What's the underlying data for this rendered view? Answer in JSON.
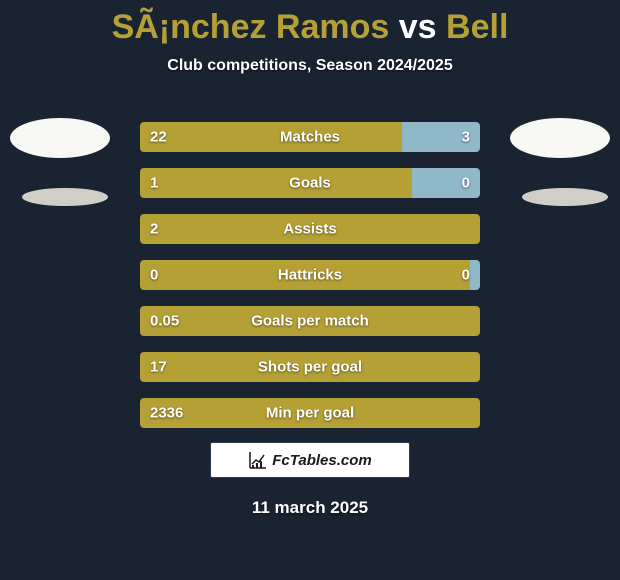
{
  "title": {
    "player1": "SÃ¡nchez Ramos",
    "vs": "vs",
    "player2": "Bell",
    "accent_color": "#b5a035",
    "text_color": "#ffffff",
    "fontsize": 34
  },
  "subtitle": "Club competitions, Season 2024/2025",
  "background_color": "#1a2332",
  "avatars": {
    "fill": "#f8f8f4",
    "shadow_fill": "#cfcfc8"
  },
  "bar_style": {
    "left_color": "#b5a035",
    "right_color": "#8fb8c9",
    "height": 30,
    "gap": 16,
    "border_radius": 4,
    "label_fontsize": 15,
    "text_color": "#ffffff"
  },
  "stats": [
    {
      "label": "Matches",
      "left_val": "22",
      "right_val": "3",
      "left_pct": 77
    },
    {
      "label": "Goals",
      "left_val": "1",
      "right_val": "0",
      "left_pct": 80
    },
    {
      "label": "Assists",
      "left_val": "2",
      "right_val": "",
      "left_pct": 100
    },
    {
      "label": "Hattricks",
      "left_val": "0",
      "right_val": "0",
      "left_pct": 97
    },
    {
      "label": "Goals per match",
      "left_val": "0.05",
      "right_val": "",
      "left_pct": 100
    },
    {
      "label": "Shots per goal",
      "left_val": "17",
      "right_val": "",
      "left_pct": 100
    },
    {
      "label": "Min per goal",
      "left_val": "2336",
      "right_val": "",
      "left_pct": 100
    }
  ],
  "watermark": {
    "text": "FcTables.com",
    "bg": "#ffffff",
    "text_color": "#1a1a1a",
    "fontsize": 15
  },
  "date": "11 march 2025"
}
